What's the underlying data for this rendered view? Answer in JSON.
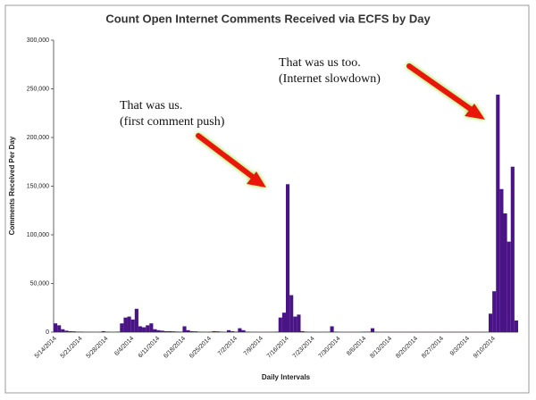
{
  "chart_data": {
    "type": "bar",
    "title": "Count Open Internet Comments Received via ECFS by Day",
    "y_label": "Comments Received Per Day",
    "x_label": "Daily Intervals",
    "annotations": [
      [
        "That was us.",
        "(first comment push)"
      ],
      [
        "That was us too.",
        "(Internet slowdown)"
      ]
    ],
    "color": "#4a1486",
    "grid": false,
    "ylim": [
      0,
      300000
    ],
    "yticks": [
      0,
      {
        "value": 50000,
        "label": "50,000"
      },
      {
        "value": 100000,
        "label": "100,000"
      },
      {
        "value": 150000,
        "label": "150,000"
      },
      {
        "value": 200000,
        "label": "200,000"
      },
      {
        "value": 250000,
        "label": "250,000"
      },
      {
        "value": 300000,
        "label": "300,000"
      }
    ],
    "categories": [
      "5/14/2014",
      null,
      null,
      null,
      null,
      null,
      null,
      "5/21/2014",
      null,
      null,
      null,
      null,
      null,
      null,
      "5/28/2014",
      null,
      null,
      null,
      null,
      null,
      null,
      "6/4/2014",
      null,
      null,
      null,
      null,
      null,
      null,
      "6/11/2014",
      null,
      null,
      null,
      null,
      null,
      null,
      "6/18/2014",
      null,
      null,
      null,
      null,
      null,
      null,
      "6/25/2014",
      null,
      null,
      null,
      null,
      null,
      null,
      "7/2/2014",
      null,
      null,
      null,
      null,
      null,
      null,
      "7/9/2014",
      null,
      null,
      null,
      null,
      null,
      null,
      "7/16/2014",
      null,
      null,
      null,
      null,
      null,
      null,
      "7/23/2014",
      null,
      null,
      null,
      null,
      null,
      null,
      "7/30/2014",
      null,
      null,
      null,
      null,
      null,
      null,
      "8/6/2014",
      null,
      null,
      null,
      null,
      null,
      null,
      "8/13/2014",
      null,
      null,
      null,
      null,
      null,
      null,
      "8/20/2014",
      null,
      null,
      null,
      null,
      null,
      null,
      "8/27/2014",
      null,
      null,
      null,
      null,
      null,
      null,
      "9/3/2014",
      null,
      null,
      null,
      null,
      null,
      null,
      "9/10/2014",
      null,
      null,
      null,
      null,
      null,
      null
    ],
    "values": [
      9000,
      7000,
      3000,
      1500,
      1000,
      800,
      500,
      500,
      300,
      300,
      200,
      200,
      300,
      1000,
      500,
      300,
      300,
      500,
      9000,
      15000,
      16000,
      13000,
      24000,
      6000,
      5000,
      7000,
      9000,
      3000,
      2000,
      1500,
      1000,
      1000,
      800,
      600,
      500,
      6000,
      2000,
      1000,
      800,
      500,
      400,
      300,
      500,
      1000,
      800,
      500,
      300,
      2000,
      1000,
      500,
      4000,
      2000,
      500,
      300,
      200,
      200,
      200,
      200,
      200,
      300,
      500,
      15000,
      20000,
      152000,
      38000,
      16000,
      18000,
      1000,
      500,
      300,
      300,
      200,
      200,
      200,
      300,
      6000,
      500,
      300,
      200,
      200,
      200,
      200,
      200,
      300,
      500,
      500,
      4000,
      300,
      200,
      200,
      200,
      200,
      200,
      200,
      200,
      200,
      200,
      200,
      200,
      200,
      200,
      200,
      200,
      200,
      200,
      200,
      200,
      200,
      200,
      200,
      200,
      200,
      200,
      200,
      200,
      200,
      200,
      200,
      19000,
      42000,
      244000,
      147000,
      122000,
      93000,
      170000,
      12000
    ]
  }
}
